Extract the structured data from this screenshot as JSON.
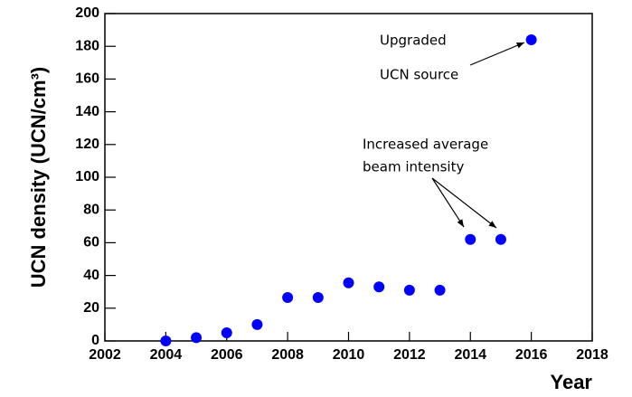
{
  "chart_data": {
    "type": "scatter",
    "xlabel": "Year",
    "ylabel": "UCN density (UCN/cm³)",
    "x": [
      2004,
      2005,
      2006,
      2007,
      2008,
      2009,
      2010,
      2011,
      2012,
      2013,
      2014,
      2015,
      2016
    ],
    "series": [
      {
        "color": "#0000ff",
        "values": [
          0,
          2,
          5,
          10,
          26.5,
          26.5,
          35.5,
          33,
          31,
          31,
          62,
          62,
          184
        ]
      }
    ],
    "xlim": [
      2002,
      2018
    ],
    "xticks": [
      2002,
      2004,
      2006,
      2008,
      2010,
      2012,
      2014,
      2016,
      2018
    ],
    "ylim": [
      0,
      200
    ],
    "yticks": [
      0,
      20,
      40,
      60,
      80,
      100,
      120,
      140,
      160,
      180,
      200
    ],
    "annotations": [
      {
        "lines": [
          "Upgraded",
          "UCN source"
        ]
      },
      {
        "lines": [
          "Increased average",
          "beam intensity"
        ]
      }
    ]
  }
}
